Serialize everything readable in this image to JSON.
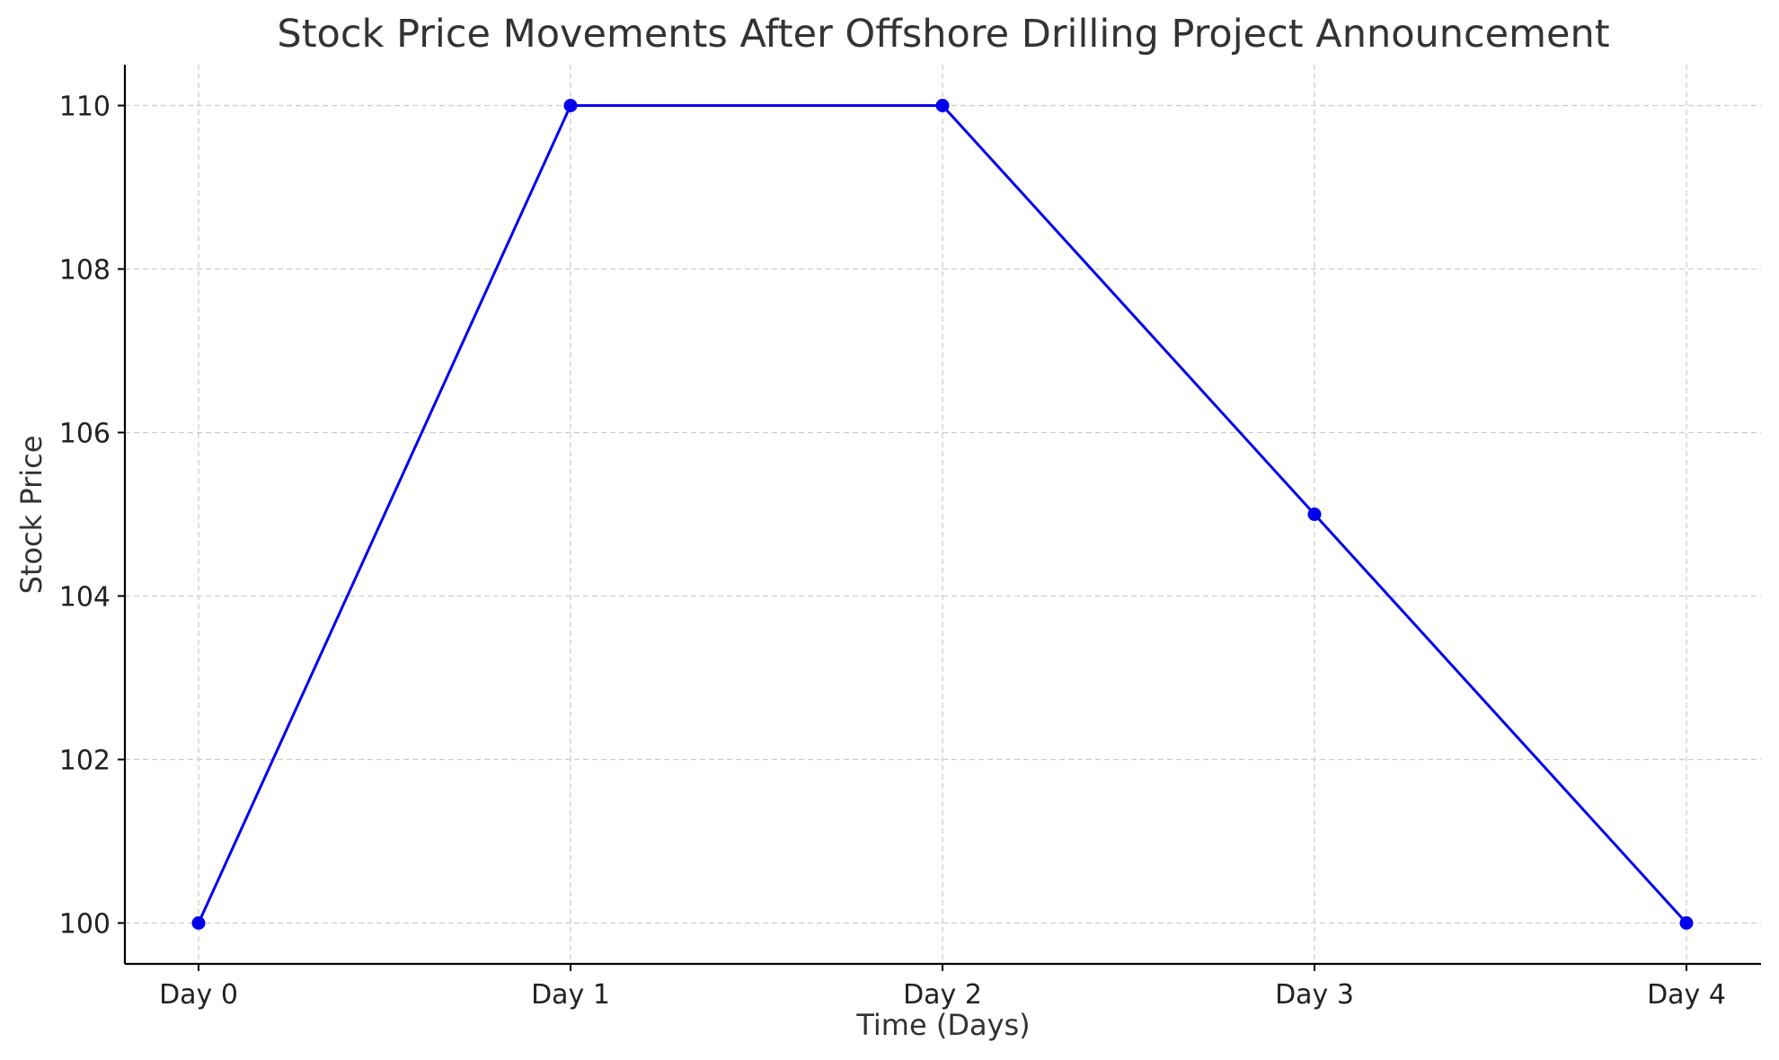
{
  "chart_data": {
    "type": "line",
    "title": "Stock Price Movements After Offshore Drilling Project Announcement",
    "xlabel": "Time (Days)",
    "ylabel": "Stock Price",
    "categories": [
      "Day 0",
      "Day 1",
      "Day 2",
      "Day 3",
      "Day 4"
    ],
    "series": [
      {
        "values": [
          100,
          110,
          110,
          105,
          100
        ],
        "color": "#0000ee",
        "marker": "circle"
      }
    ],
    "yticks": [
      100,
      102,
      104,
      106,
      108,
      110
    ],
    "ylim": [
      99.5,
      110.5
    ],
    "grid": true
  }
}
